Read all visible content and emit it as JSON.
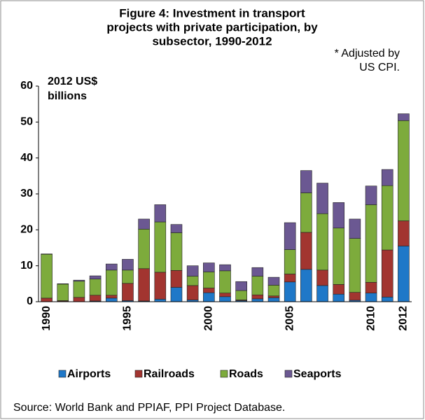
{
  "chart_data": {
    "type": "stacked_bar",
    "title": [
      "Figure 4: Investment in transport",
      "projects with private participation, by",
      "subsector, 1990-2012"
    ],
    "annotation": [
      "* Adjusted by",
      "US CPI."
    ],
    "y_label": [
      "2012 US$",
      "billions"
    ],
    "source": "Source:  World Bank and PPIAF, PPI Project Database.",
    "categories": [
      "1990",
      null,
      null,
      null,
      null,
      "1995",
      null,
      null,
      null,
      null,
      "2000",
      null,
      null,
      null,
      null,
      "2005",
      null,
      null,
      null,
      null,
      "2010",
      null,
      "2012"
    ],
    "series": [
      {
        "name": "Airports",
        "color": "#1f78c8",
        "values": [
          0,
          0.1,
          0,
          0.2,
          1.0,
          0.3,
          0.2,
          0.7,
          4.0,
          0.5,
          2.5,
          1.4,
          0.3,
          0.8,
          1.1,
          5.5,
          9.0,
          4.5,
          2.1,
          0.4,
          2.4,
          1.3,
          15.5
        ]
      },
      {
        "name": "Railroads",
        "color": "#a23530",
        "values": [
          1.0,
          0.2,
          1.2,
          1.6,
          0.8,
          4.8,
          9.0,
          7.5,
          4.7,
          4.0,
          1.3,
          1.0,
          0.2,
          1.1,
          0.5,
          2.2,
          10.3,
          4.3,
          2.7,
          2.2,
          3.0,
          13.1,
          7.0
        ]
      },
      {
        "name": "Roads",
        "color": "#7dab3c",
        "values": [
          12.2,
          4.6,
          4.5,
          4.5,
          7.0,
          3.7,
          11.0,
          14.0,
          10.5,
          2.6,
          4.5,
          6.2,
          2.6,
          5.2,
          3.0,
          6.8,
          11.0,
          15.7,
          15.7,
          15.0,
          21.6,
          17.9,
          27.9
        ]
      },
      {
        "name": "Seaports",
        "color": "#6b5892",
        "values": [
          0.1,
          0.1,
          0.3,
          0.9,
          1.7,
          3.0,
          2.8,
          4.8,
          2.3,
          2.9,
          2.5,
          1.7,
          2.5,
          2.4,
          2.2,
          7.5,
          6.2,
          8.5,
          7.1,
          5.4,
          5.2,
          4.5,
          1.9
        ]
      }
    ],
    "ylim": [
      0,
      60
    ],
    "yticks": [
      0,
      10,
      20,
      30,
      40,
      50,
      60
    ],
    "legend": "bottom"
  }
}
